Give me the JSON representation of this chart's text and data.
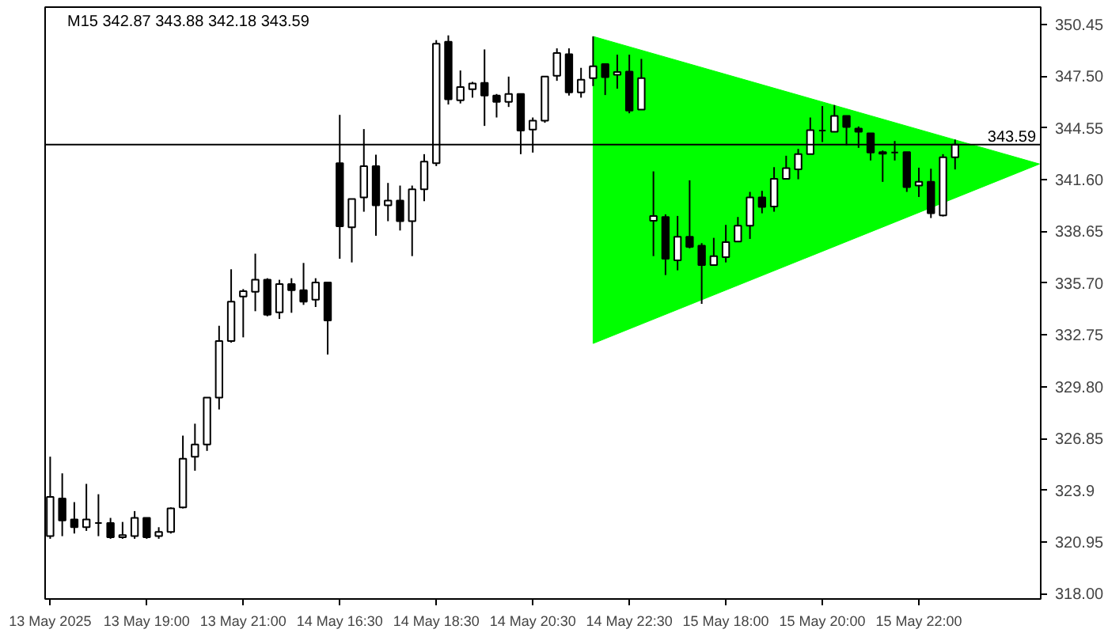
{
  "chart_data": {
    "type": "candlestick",
    "title": "M15  342.87 343.88 342.18 343.59",
    "categories": [
      "13 May 2025",
      null,
      null,
      null,
      null,
      null,
      null,
      null,
      "13 May 19:00",
      null,
      null,
      null,
      null,
      null,
      null,
      null,
      "13 May 21:00",
      null,
      null,
      null,
      null,
      null,
      null,
      null,
      "14 May 16:30",
      null,
      null,
      null,
      null,
      null,
      null,
      null,
      "14 May 18:30",
      null,
      null,
      null,
      null,
      null,
      null,
      null,
      "14 May 20:30",
      null,
      null,
      null,
      null,
      null,
      null,
      null,
      "14 May 22:30",
      null,
      null,
      null,
      null,
      null,
      null,
      null,
      "15 May 18:00",
      null,
      null,
      null,
      null,
      null,
      null,
      null,
      "15 May 20:00",
      null,
      null,
      null,
      null,
      null,
      null,
      null,
      "15 May 22:00",
      null,
      null,
      null,
      null,
      null,
      null,
      null,
      null,
      null,
      null
    ],
    "ohlc": [
      [
        321.28,
        325.81,
        321.13,
        323.52
      ],
      [
        323.43,
        324.86,
        321.28,
        322.17
      ],
      [
        322.23,
        323.22,
        321.43,
        321.79
      ],
      [
        321.79,
        324.26,
        321.58,
        322.23
      ],
      [
        322.03,
        323.67,
        321.28,
        322.03
      ],
      [
        322.03,
        322.32,
        321.13,
        321.22
      ],
      [
        321.22,
        322.09,
        321.13,
        321.34
      ],
      [
        321.28,
        322.71,
        321.13,
        322.32
      ],
      [
        322.32,
        322.32,
        321.13,
        321.22
      ],
      [
        321.28,
        321.79,
        321.13,
        321.52
      ],
      [
        321.52,
        322.92,
        321.43,
        322.86
      ],
      [
        322.92,
        327.01,
        322.86,
        325.69
      ],
      [
        325.81,
        327.69,
        325.01,
        326.5
      ],
      [
        326.5,
        329.18,
        326.14,
        329.18
      ],
      [
        329.18,
        333.27,
        328.5,
        332.4
      ],
      [
        332.4,
        336.49,
        332.31,
        334.64
      ],
      [
        334.94,
        335.36,
        332.61,
        335.24
      ],
      [
        335.21,
        337.38,
        334.1,
        335.89
      ],
      [
        335.89,
        335.98,
        333.81,
        333.9
      ],
      [
        334.04,
        335.89,
        333.66,
        335.65
      ],
      [
        335.65,
        335.98,
        334.01,
        335.3
      ],
      [
        335.3,
        336.85,
        334.46,
        334.64
      ],
      [
        334.76,
        335.98,
        334.34,
        335.74
      ],
      [
        335.74,
        335.74,
        331.63,
        333.57
      ],
      [
        342.54,
        345.29,
        337.09,
        338.94
      ],
      [
        338.88,
        340.49,
        336.88,
        340.49
      ],
      [
        340.58,
        344.48,
        339.77,
        342.37
      ],
      [
        342.37,
        343.02,
        338.4,
        340.13
      ],
      [
        340.13,
        341.41,
        339.23,
        340.4
      ],
      [
        340.4,
        341.26,
        338.7,
        339.23
      ],
      [
        339.23,
        341.26,
        337.24,
        341.05
      ],
      [
        341.05,
        343.05,
        340.37,
        342.63
      ],
      [
        342.54,
        349.55,
        342.37,
        349.34
      ],
      [
        349.46,
        349.82,
        345.88,
        346.18
      ],
      [
        346.12,
        347.82,
        345.94,
        346.87
      ],
      [
        346.75,
        347.17,
        346.27,
        347.08
      ],
      [
        347.11,
        349.02,
        344.66,
        346.39
      ],
      [
        346.39,
        346.48,
        345.14,
        346.03
      ],
      [
        346.03,
        347.47,
        345.74,
        346.48
      ],
      [
        346.48,
        346.48,
        343.05,
        344.39
      ],
      [
        344.45,
        345.14,
        343.14,
        344.96
      ],
      [
        344.96,
        347.47,
        344.84,
        347.47
      ],
      [
        347.52,
        349.08,
        347.23,
        348.81
      ],
      [
        348.75,
        349.08,
        346.39,
        346.57
      ],
      [
        346.57,
        347.97,
        346.27,
        347.29
      ],
      [
        347.38,
        349.76,
        346.93,
        348.06
      ],
      [
        348.18,
        348.18,
        346.42,
        347.44
      ],
      [
        347.58,
        348.72,
        346.78,
        347.73
      ],
      [
        347.76,
        348.72,
        345.38,
        345.53
      ],
      [
        345.59,
        348.48,
        345.59,
        347.38
      ],
      [
        339.26,
        342.07,
        337.24,
        339.53
      ],
      [
        339.47,
        339.62,
        336.16,
        337.09
      ],
      [
        337.0,
        339.53,
        336.43,
        338.34
      ],
      [
        338.34,
        341.56,
        337.68,
        337.77
      ],
      [
        337.83,
        337.98,
        334.52,
        336.73
      ],
      [
        336.73,
        338.28,
        336.7,
        337.24
      ],
      [
        337.18,
        339.02,
        336.88,
        338.04
      ],
      [
        338.07,
        339.47,
        338.04,
        338.97
      ],
      [
        338.97,
        340.9,
        338.22,
        340.58
      ],
      [
        340.58,
        340.96,
        339.68,
        340.04
      ],
      [
        340.07,
        342.31,
        339.77,
        341.65
      ],
      [
        341.65,
        342.96,
        341.62,
        342.25
      ],
      [
        342.19,
        343.35,
        341.62,
        343.05
      ],
      [
        343.05,
        345.14,
        343.05,
        344.42
      ],
      [
        344.39,
        345.79,
        343.74,
        344.39
      ],
      [
        344.33,
        345.85,
        344.3,
        345.23
      ],
      [
        345.23,
        345.23,
        343.56,
        344.6
      ],
      [
        344.51,
        344.63,
        343.41,
        344.33
      ],
      [
        344.24,
        344.24,
        342.69,
        343.14
      ],
      [
        343.17,
        343.26,
        341.47,
        343.08
      ],
      [
        343.14,
        343.8,
        342.69,
        343.14
      ],
      [
        343.17,
        343.17,
        340.9,
        341.17
      ],
      [
        341.26,
        342.28,
        340.61,
        341.47
      ],
      [
        341.47,
        342.22,
        339.41,
        339.68
      ],
      [
        339.56,
        343.05,
        339.5,
        342.87
      ],
      [
        342.87,
        343.88,
        342.18,
        343.59
      ],
      null,
      null,
      null,
      null,
      null,
      null,
      null
    ],
    "series": [
      {
        "type": "area",
        "color": "#00ff00",
        "values": [
          null,
          null,
          null,
          null,
          null,
          null,
          null,
          null,
          null,
          null,
          null,
          null,
          null,
          null,
          null,
          null,
          null,
          null,
          null,
          null,
          null,
          null,
          null,
          null,
          null,
          null,
          null,
          null,
          null,
          null,
          null,
          null,
          null,
          null,
          null,
          null,
          null,
          null,
          null,
          null,
          null,
          null,
          null,
          null,
          null,
          null,
          null,
          null,
          null,
          null,
          null,
          null,
          null,
          null,
          null,
          null,
          null,
          null,
          null,
          null,
          null,
          null,
          null,
          null,
          null,
          null,
          null,
          null,
          null,
          null,
          null,
          null,
          null,
          null,
          null,
          null,
          null,
          null,
          null,
          null,
          null,
          null,
          null
        ],
        "upper": [
          null,
          null,
          null,
          null,
          null,
          null,
          null,
          null,
          null,
          null,
          null,
          null,
          null,
          null,
          null,
          null,
          null,
          null,
          null,
          null,
          null,
          null,
          null,
          null,
          null,
          null,
          null,
          null,
          null,
          null,
          null,
          null,
          null,
          null,
          null,
          null,
          null,
          null,
          null,
          null,
          null,
          null,
          null,
          null,
          null,
          349.76,
          null,
          null,
          null,
          null,
          null,
          null,
          null,
          null,
          null,
          null,
          null,
          null,
          null,
          null,
          null,
          null,
          null,
          null,
          null,
          null,
          null,
          null,
          null,
          null,
          null,
          null,
          null,
          null,
          null,
          null,
          null,
          null,
          null,
          null,
          null,
          null,
          342.49
        ],
        "lower": [
          null,
          null,
          null,
          null,
          null,
          null,
          null,
          null,
          null,
          null,
          null,
          null,
          null,
          null,
          null,
          null,
          null,
          null,
          null,
          null,
          null,
          null,
          null,
          null,
          null,
          null,
          null,
          null,
          null,
          null,
          null,
          null,
          null,
          null,
          null,
          null,
          null,
          null,
          null,
          null,
          null,
          null,
          null,
          null,
          null,
          332.26,
          null,
          null,
          null,
          null,
          null,
          null,
          null,
          null,
          null,
          null,
          null,
          null,
          null,
          null,
          null,
          null,
          null,
          null,
          null,
          null,
          null,
          null,
          null,
          null,
          null,
          null,
          null,
          null,
          null,
          null,
          null,
          null,
          null,
          null,
          null,
          null,
          342.49
        ]
      }
    ],
    "ylim": [
      317.7,
      351.43
    ],
    "yticks": [
      350.45,
      {
        "value": 347.5,
        "label": "347.50"
      },
      344.55,
      {
        "value": 341.6,
        "label": "341.60"
      },
      338.65,
      {
        "value": 335.7,
        "label": "335.70"
      },
      332.75,
      {
        "value": 329.8,
        "label": "329.80"
      },
      326.85,
      323.9,
      320.95,
      {
        "value": 318,
        "label": "318.00"
      }
    ],
    "ref_lines": [
      {
        "axis": "y",
        "value": 343.59,
        "label": "343.59",
        "color": "#000000"
      }
    ]
  }
}
